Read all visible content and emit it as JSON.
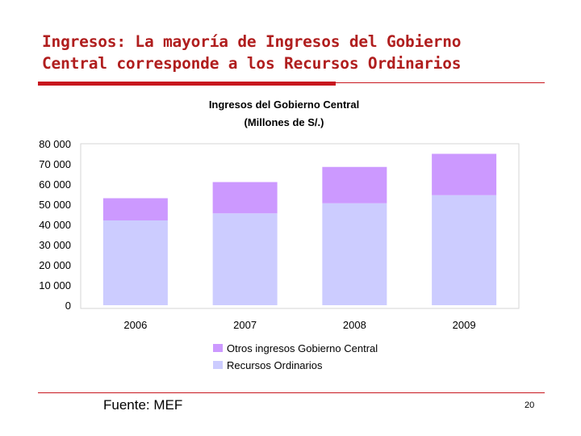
{
  "slide": {
    "title_line_1": "Ingresos: La mayoría de Ingresos del Gobierno",
    "title_line_2": "Central corresponde a los Recursos Ordinarios",
    "source": "Fuente: MEF",
    "page_number": "20",
    "accent_color": "#c8171e",
    "title_color": "#b01e1e"
  },
  "chart_data": {
    "type": "bar",
    "stacked": true,
    "title": "Ingresos del Gobierno Central",
    "subtitle": "(Millones de S/.)",
    "categories": [
      "2006",
      "2007",
      "2008",
      "2009"
    ],
    "series": [
      {
        "name": "Recursos Ordinarios",
        "values": [
          42000,
          45500,
          50500,
          54500
        ],
        "color": "#ccccff"
      },
      {
        "name": "Otros ingresos Gobierno Central",
        "values": [
          11000,
          15500,
          18000,
          20500
        ],
        "color": "#cc99ff"
      }
    ],
    "legend": [
      {
        "name": "Otros ingresos Gobierno Central",
        "color": "#cc99ff"
      },
      {
        "name": "Recursos Ordinarios",
        "color": "#ccccff"
      }
    ],
    "ylim": [
      0,
      80000
    ],
    "ytick_values": [
      0,
      10000,
      20000,
      30000,
      40000,
      50000,
      60000,
      70000,
      80000
    ],
    "ytick_labels": [
      "0",
      "10 000",
      "20 000",
      "30 000",
      "40 000",
      "50 000",
      "60 000",
      "70 000",
      "80 000"
    ],
    "xlabel": "",
    "ylabel": "",
    "grid": false,
    "legend_position": "bottom"
  }
}
